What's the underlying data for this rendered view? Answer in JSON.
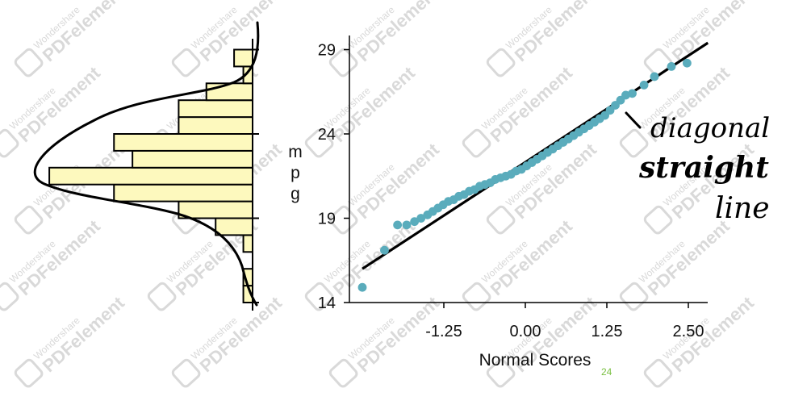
{
  "colors": {
    "point": "#5aacbc",
    "bar_fill": "#fdf9be",
    "ink": "#000000",
    "page_number": "#7bc043",
    "watermark": "#d9d9d9"
  },
  "page_number": "24",
  "watermark": {
    "line1": "Wondershare",
    "line2": "PDFelement"
  },
  "annotation": {
    "line1": "diagonal",
    "line2": "straight",
    "line3": "line"
  },
  "chart_data": [
    {
      "type": "bar",
      "orientation": "horizontal",
      "ylabel": "m p g",
      "bins": [
        {
          "from": 14.0,
          "to": 15.0,
          "count": 0.5
        },
        {
          "from": 15.0,
          "to": 16.0,
          "count": 0.5
        },
        {
          "from": 16.0,
          "to": 17.0,
          "count": 0.0
        },
        {
          "from": 17.0,
          "to": 18.0,
          "count": 0.5
        },
        {
          "from": 18.0,
          "to": 19.0,
          "count": 2.0
        },
        {
          "from": 19.0,
          "to": 20.0,
          "count": 4.0
        },
        {
          "from": 20.0,
          "to": 21.0,
          "count": 7.5
        },
        {
          "from": 21.0,
          "to": 22.0,
          "count": 11.0
        },
        {
          "from": 22.0,
          "to": 23.0,
          "count": 6.5
        },
        {
          "from": 23.0,
          "to": 24.0,
          "count": 7.5
        },
        {
          "from": 24.0,
          "to": 25.0,
          "count": 4.0
        },
        {
          "from": 25.0,
          "to": 26.0,
          "count": 4.0
        },
        {
          "from": 26.0,
          "to": 27.0,
          "count": 2.5
        },
        {
          "from": 27.0,
          "to": 28.0,
          "count": 0.5
        },
        {
          "from": 28.0,
          "to": 29.0,
          "count": 1.0
        }
      ],
      "density_curve": true
    },
    {
      "type": "scatter",
      "xlabel": "Normal Scores",
      "x_ticks": [
        "-1.25",
        "0.00",
        "1.25",
        "2.50"
      ],
      "y_ticks": [
        "14",
        "19",
        "24",
        "29"
      ],
      "xlim": [
        -2.55,
        2.85
      ],
      "ylim": [
        14,
        30.2
      ],
      "points": [
        [
          -2.5,
          14.9
        ],
        [
          -2.16,
          17.1
        ],
        [
          -1.96,
          18.6
        ],
        [
          -1.82,
          18.6
        ],
        [
          -1.7,
          18.8
        ],
        [
          -1.6,
          19.0
        ],
        [
          -1.5,
          19.2
        ],
        [
          -1.42,
          19.4
        ],
        [
          -1.34,
          19.6
        ],
        [
          -1.26,
          19.8
        ],
        [
          -1.18,
          20.0
        ],
        [
          -1.1,
          20.1
        ],
        [
          -1.02,
          20.3
        ],
        [
          -0.94,
          20.4
        ],
        [
          -0.86,
          20.6
        ],
        [
          -0.78,
          20.7
        ],
        [
          -0.7,
          20.9
        ],
        [
          -0.62,
          21.0
        ],
        [
          -0.54,
          21.1
        ],
        [
          -0.46,
          21.3
        ],
        [
          -0.38,
          21.4
        ],
        [
          -0.3,
          21.5
        ],
        [
          -0.22,
          21.6
        ],
        [
          -0.14,
          21.8
        ],
        [
          -0.06,
          21.9
        ],
        [
          0.02,
          22.1
        ],
        [
          0.1,
          22.3
        ],
        [
          0.18,
          22.5
        ],
        [
          0.26,
          22.7
        ],
        [
          0.34,
          22.9
        ],
        [
          0.42,
          23.1
        ],
        [
          0.5,
          23.3
        ],
        [
          0.58,
          23.5
        ],
        [
          0.66,
          23.7
        ],
        [
          0.74,
          23.9
        ],
        [
          0.82,
          24.1
        ],
        [
          0.9,
          24.3
        ],
        [
          0.98,
          24.5
        ],
        [
          1.06,
          24.7
        ],
        [
          1.14,
          24.9
        ],
        [
          1.22,
          25.1
        ],
        [
          1.3,
          25.4
        ],
        [
          1.38,
          25.7
        ],
        [
          1.46,
          26.0
        ],
        [
          1.54,
          26.3
        ],
        [
          1.64,
          26.4
        ],
        [
          1.82,
          26.9
        ],
        [
          1.98,
          27.4
        ],
        [
          2.24,
          28.0
        ],
        [
          2.48,
          28.2
        ]
      ],
      "reference_line": {
        "from": [
          -2.5,
          16.0
        ],
        "to": [
          2.8,
          29.4
        ]
      }
    }
  ]
}
